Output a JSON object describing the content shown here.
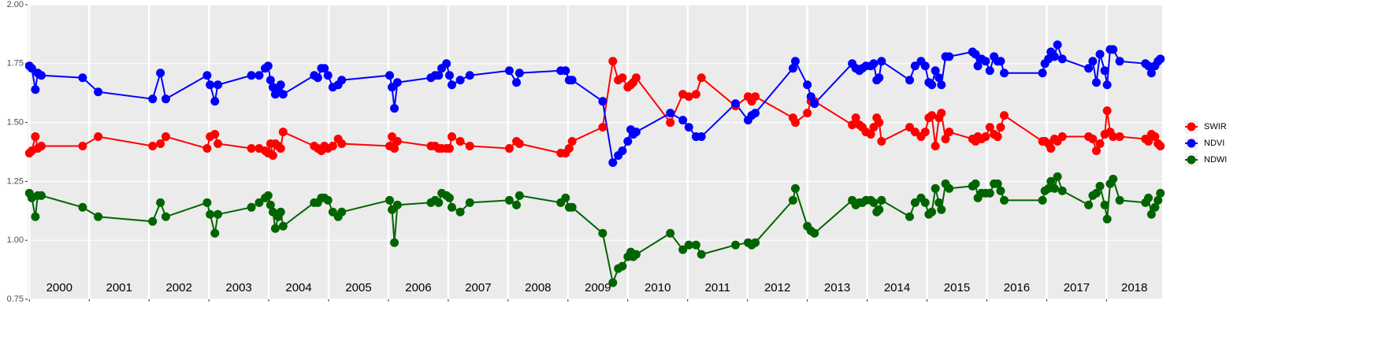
{
  "chart_data": {
    "type": "line",
    "x": [
      2000.0,
      2000.04,
      2000.1,
      2000.14,
      2000.2,
      2000.89,
      2001.15,
      2002.06,
      2002.19,
      2002.28,
      2002.97,
      2003.02,
      2003.1,
      2003.15,
      2003.71,
      2003.84,
      2003.94,
      2003.99,
      2004.03,
      2004.07,
      2004.11,
      2004.16,
      2004.2,
      2004.24,
      2004.76,
      2004.82,
      2004.88,
      2004.93,
      2004.99,
      2005.07,
      2005.16,
      2005.22,
      2006.02,
      2006.06,
      2006.1,
      2006.15,
      2006.71,
      2006.78,
      2006.84,
      2006.89,
      2006.97,
      2007.02,
      2007.06,
      2007.2,
      2007.36,
      2008.02,
      2008.14,
      2008.19,
      2008.88,
      2008.96,
      2009.02,
      2009.07,
      2009.58,
      2009.75,
      2009.84,
      2009.91,
      2010.0,
      2010.05,
      2010.09,
      2010.14,
      2010.71,
      2010.92,
      2011.02,
      2011.14,
      2011.23,
      2011.8,
      2012.01,
      2012.07,
      2012.13,
      2012.76,
      2012.8,
      2013.0,
      2013.06,
      2013.12,
      2013.75,
      2013.81,
      2013.87,
      2013.92,
      2013.98,
      2014.06,
      2014.11,
      2014.16,
      2014.2,
      2014.24,
      2014.71,
      2014.8,
      2014.9,
      2014.97,
      2015.03,
      2015.08,
      2015.14,
      2015.2,
      2015.24,
      2015.31,
      2015.37,
      2015.76,
      2015.81,
      2015.85,
      2015.91,
      2015.98,
      2016.05,
      2016.12,
      2016.18,
      2016.23,
      2016.29,
      2016.93,
      2016.97,
      2017.03,
      2017.07,
      2017.13,
      2017.18,
      2017.26,
      2017.7,
      2017.77,
      2017.83,
      2017.89,
      2017.97,
      2018.01,
      2018.06,
      2018.11,
      2018.22,
      2018.65,
      2018.7,
      2018.75,
      2018.81,
      2018.86,
      2018.9
    ],
    "series": [
      {
        "name": "SWIR",
        "color": "#ff0000",
        "values": [
          1.37,
          1.38,
          1.44,
          1.39,
          1.4,
          1.4,
          1.44,
          1.4,
          1.41,
          1.44,
          1.39,
          1.44,
          1.45,
          1.41,
          1.39,
          1.39,
          1.38,
          1.37,
          1.41,
          1.36,
          1.41,
          1.4,
          1.39,
          1.46,
          1.4,
          1.39,
          1.38,
          1.4,
          1.39,
          1.4,
          1.43,
          1.41,
          1.4,
          1.44,
          1.39,
          1.42,
          1.4,
          1.4,
          1.39,
          1.39,
          1.39,
          1.39,
          1.44,
          1.42,
          1.4,
          1.39,
          1.42,
          1.41,
          1.37,
          1.37,
          1.39,
          1.42,
          1.48,
          1.76,
          1.68,
          1.69,
          1.65,
          1.66,
          1.67,
          1.69,
          1.5,
          1.62,
          1.61,
          1.62,
          1.69,
          1.57,
          1.61,
          1.59,
          1.61,
          1.52,
          1.5,
          1.54,
          1.59,
          1.59,
          1.49,
          1.52,
          1.49,
          1.48,
          1.46,
          1.45,
          1.48,
          1.52,
          1.5,
          1.42,
          1.48,
          1.46,
          1.44,
          1.46,
          1.52,
          1.53,
          1.4,
          1.52,
          1.54,
          1.43,
          1.46,
          1.43,
          1.42,
          1.44,
          1.43,
          1.44,
          1.48,
          1.45,
          1.44,
          1.48,
          1.53,
          1.42,
          1.42,
          1.41,
          1.39,
          1.43,
          1.42,
          1.44,
          1.44,
          1.43,
          1.38,
          1.41,
          1.45,
          1.55,
          1.46,
          1.44,
          1.44,
          1.43,
          1.42,
          1.45,
          1.44,
          1.41,
          1.4
        ]
      },
      {
        "name": "NDVI",
        "color": "#0000ff",
        "values": [
          1.74,
          1.73,
          1.64,
          1.71,
          1.7,
          1.69,
          1.63,
          1.6,
          1.71,
          1.6,
          1.7,
          1.66,
          1.59,
          1.66,
          1.7,
          1.7,
          1.73,
          1.74,
          1.68,
          1.65,
          1.62,
          1.64,
          1.66,
          1.62,
          1.7,
          1.69,
          1.73,
          1.73,
          1.7,
          1.65,
          1.66,
          1.68,
          1.7,
          1.65,
          1.56,
          1.67,
          1.69,
          1.7,
          1.7,
          1.73,
          1.75,
          1.7,
          1.66,
          1.68,
          1.7,
          1.72,
          1.67,
          1.71,
          1.72,
          1.72,
          1.68,
          1.68,
          1.59,
          1.33,
          1.36,
          1.38,
          1.42,
          1.47,
          1.45,
          1.46,
          1.54,
          1.51,
          1.48,
          1.44,
          1.44,
          1.58,
          1.51,
          1.53,
          1.54,
          1.73,
          1.76,
          1.66,
          1.61,
          1.58,
          1.75,
          1.73,
          1.72,
          1.73,
          1.74,
          1.74,
          1.75,
          1.68,
          1.69,
          1.76,
          1.68,
          1.74,
          1.76,
          1.74,
          1.67,
          1.66,
          1.72,
          1.69,
          1.66,
          1.78,
          1.78,
          1.8,
          1.79,
          1.74,
          1.77,
          1.76,
          1.72,
          1.78,
          1.76,
          1.76,
          1.71,
          1.71,
          1.75,
          1.77,
          1.8,
          1.78,
          1.83,
          1.77,
          1.73,
          1.76,
          1.67,
          1.79,
          1.72,
          1.66,
          1.81,
          1.81,
          1.76,
          1.75,
          1.74,
          1.71,
          1.74,
          1.76,
          1.77
        ]
      },
      {
        "name": "NDWI",
        "color": "#006400",
        "values": [
          1.2,
          1.18,
          1.1,
          1.19,
          1.19,
          1.14,
          1.1,
          1.08,
          1.16,
          1.1,
          1.16,
          1.11,
          1.03,
          1.11,
          1.14,
          1.16,
          1.18,
          1.19,
          1.15,
          1.12,
          1.05,
          1.1,
          1.12,
          1.06,
          1.16,
          1.16,
          1.18,
          1.18,
          1.17,
          1.12,
          1.1,
          1.12,
          1.17,
          1.13,
          0.99,
          1.15,
          1.16,
          1.17,
          1.16,
          1.2,
          1.19,
          1.18,
          1.14,
          1.12,
          1.16,
          1.17,
          1.15,
          1.19,
          1.16,
          1.18,
          1.14,
          1.14,
          1.03,
          0.82,
          0.88,
          0.89,
          0.93,
          0.95,
          0.93,
          0.94,
          1.03,
          0.96,
          0.98,
          0.98,
          0.94,
          0.98,
          0.99,
          0.98,
          0.99,
          1.17,
          1.22,
          1.06,
          1.04,
          1.03,
          1.17,
          1.15,
          1.16,
          1.16,
          1.17,
          1.17,
          1.16,
          1.12,
          1.13,
          1.17,
          1.1,
          1.16,
          1.18,
          1.16,
          1.11,
          1.12,
          1.22,
          1.16,
          1.13,
          1.24,
          1.22,
          1.23,
          1.24,
          1.18,
          1.2,
          1.2,
          1.2,
          1.24,
          1.24,
          1.21,
          1.17,
          1.17,
          1.21,
          1.22,
          1.25,
          1.22,
          1.27,
          1.21,
          1.15,
          1.19,
          1.2,
          1.23,
          1.15,
          1.09,
          1.24,
          1.26,
          1.17,
          1.16,
          1.18,
          1.11,
          1.14,
          1.17,
          1.2
        ]
      }
    ],
    "xlim": [
      1999.97,
      2018.93
    ],
    "xticks": [
      2000,
      2001,
      2002,
      2003,
      2004,
      2005,
      2006,
      2007,
      2008,
      2009,
      2010,
      2011,
      2012,
      2013,
      2014,
      2015,
      2016,
      2017,
      2018
    ],
    "ylim": [
      0.75,
      2.0
    ],
    "yticks": [
      {
        "value": 0.75,
        "label": "0.75"
      },
      {
        "value": 1.0,
        "label": "1.00"
      },
      {
        "value": 1.25,
        "label": "1.25"
      },
      {
        "value": 1.5,
        "label": "1.50"
      },
      {
        "value": 1.75,
        "label": "1.75"
      },
      {
        "value": 2.0,
        "label": "2.00"
      }
    ],
    "grid": true,
    "legend": "right"
  }
}
